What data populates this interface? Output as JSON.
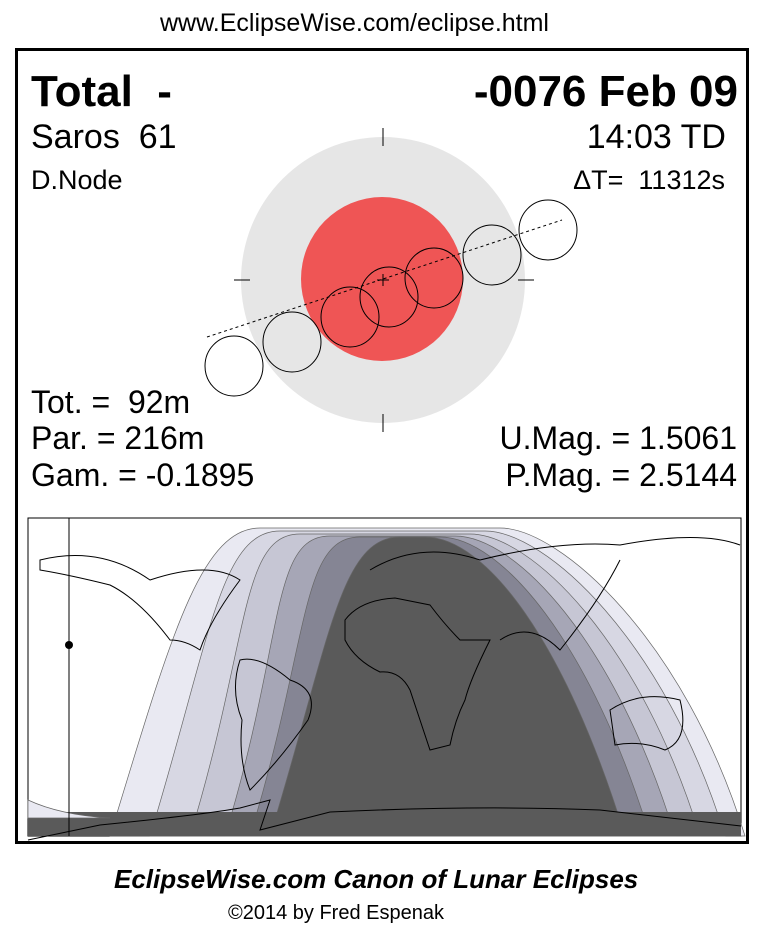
{
  "url": "www.EclipseWise.com/eclipse.html",
  "header": {
    "type": "Total  -",
    "date": "-0076 Feb 09",
    "saros": "Saros  61",
    "time": "14:03 TD",
    "node": "D.Node",
    "delta_t": "ΔT=  11312s"
  },
  "stats": {
    "tot": "Tot. =  92m",
    "par": "Par. = 216m",
    "gam": "Gam. = -0.1895",
    "umag": "U.Mag. = 1.5061",
    "pmag": "P.Mag. = 2.5144"
  },
  "footer": {
    "title": "EclipseWise.com Canon of Lunar Eclipses",
    "copyright": "©2014 by Fred Espenak"
  },
  "colors": {
    "penumbra": "#e6e6e6",
    "umbra": "#ef5555",
    "bands": [
      "#e9e9f2",
      "#d7d7e3",
      "#c6c6d4",
      "#a6a6b6",
      "#858594",
      "#5a5a5a"
    ]
  }
}
